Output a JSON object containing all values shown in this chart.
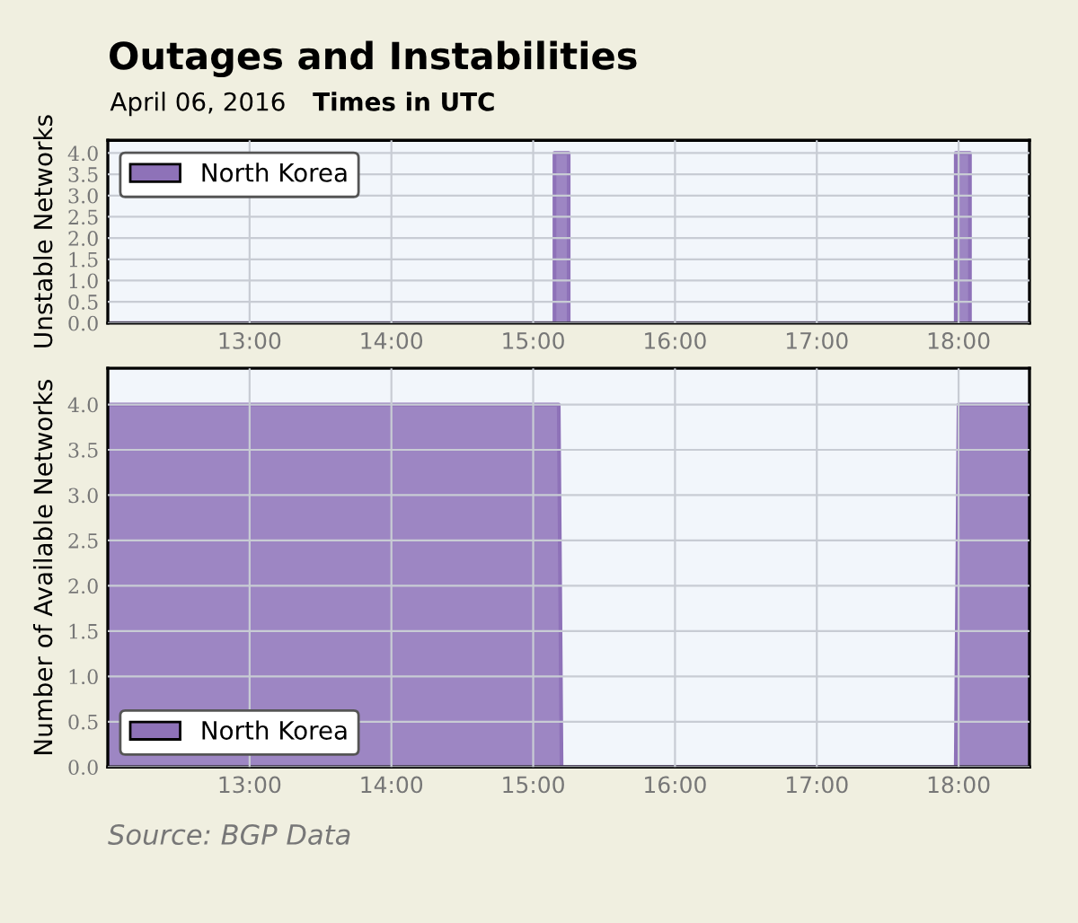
{
  "chart_data": [
    {
      "type": "area",
      "title": "Outages and Instabilities",
      "subtitle": "April 06, 2016",
      "annotations": [
        "Times in UTC"
      ],
      "ylabel": "Unstable Networks",
      "series": [
        {
          "name": "North Korea",
          "color": "#8e72b8",
          "x": [
            12.0,
            15.15,
            15.15,
            15.25,
            15.25,
            17.98,
            17.98,
            18.08,
            18.08,
            18.5
          ],
          "values": [
            0,
            0,
            4,
            4,
            0,
            0,
            4,
            4,
            0,
            0
          ]
        }
      ],
      "xlim": [
        12.0,
        18.5
      ],
      "xticks": [
        {
          "value": 13,
          "label": "13:00"
        },
        {
          "value": 14,
          "label": "14:00"
        },
        {
          "value": 15,
          "label": "15:00"
        },
        {
          "value": 16,
          "label": "16:00"
        },
        {
          "value": 17,
          "label": "17:00"
        },
        {
          "value": 18,
          "label": "18:00"
        }
      ],
      "ylim": [
        0,
        4.3
      ],
      "yticks": [
        {
          "value": 0,
          "label": "0.0"
        },
        {
          "value": 0.5,
          "label": "0.5"
        },
        {
          "value": 1,
          "label": "1.0"
        },
        {
          "value": 1.5,
          "label": "1.5"
        },
        {
          "value": 2,
          "label": "2.0"
        },
        {
          "value": 2.5,
          "label": "2.5"
        },
        {
          "value": 3,
          "label": "3.0"
        },
        {
          "value": 3.5,
          "label": "3.5"
        },
        {
          "value": 4,
          "label": "4.0"
        }
      ],
      "grid": true,
      "legend": "top left"
    },
    {
      "type": "area",
      "ylabel": "Number of Available Networks",
      "annotations": [
        "Source: BGP Data"
      ],
      "series": [
        {
          "name": "North Korea",
          "color": "#8e72b8",
          "x": [
            12.0,
            15.18,
            15.2,
            17.98,
            18.0,
            18.5
          ],
          "values": [
            4,
            4,
            0,
            0,
            4,
            4
          ]
        }
      ],
      "xlim": [
        12.0,
        18.5
      ],
      "xticks": [
        {
          "value": 13,
          "label": "13:00"
        },
        {
          "value": 14,
          "label": "14:00"
        },
        {
          "value": 15,
          "label": "15:00"
        },
        {
          "value": 16,
          "label": "16:00"
        },
        {
          "value": 17,
          "label": "17:00"
        },
        {
          "value": 18,
          "label": "18:00"
        }
      ],
      "ylim": [
        0,
        4.4
      ],
      "yticks": [
        {
          "value": 0,
          "label": "0.0"
        },
        {
          "value": 0.5,
          "label": "0.5"
        },
        {
          "value": 1,
          "label": "1.0"
        },
        {
          "value": 1.5,
          "label": "1.5"
        },
        {
          "value": 2,
          "label": "2.0"
        },
        {
          "value": 2.5,
          "label": "2.5"
        },
        {
          "value": 3,
          "label": "3.0"
        },
        {
          "value": 3.5,
          "label": "3.5"
        },
        {
          "value": 4,
          "label": "4.0"
        }
      ],
      "grid": true,
      "legend": "bottom left"
    }
  ]
}
